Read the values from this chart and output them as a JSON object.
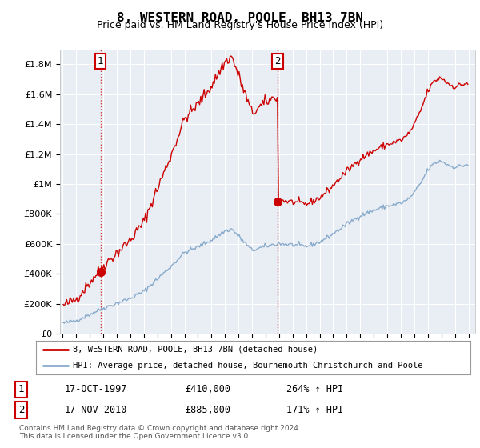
{
  "title": "8, WESTERN ROAD, POOLE, BH13 7BN",
  "subtitle": "Price paid vs. HM Land Registry's House Price Index (HPI)",
  "ylim": [
    0,
    1900000
  ],
  "xlim": [
    1994.8,
    2025.5
  ],
  "yticks": [
    0,
    200000,
    400000,
    600000,
    800000,
    1000000,
    1200000,
    1400000,
    1600000,
    1800000
  ],
  "ytick_labels": [
    "£0",
    "£200K",
    "£400K",
    "£600K",
    "£800K",
    "£1M",
    "£1.2M",
    "£1.4M",
    "£1.6M",
    "£1.8M"
  ],
  "xticks": [
    1995,
    1996,
    1997,
    1998,
    1999,
    2000,
    2001,
    2002,
    2003,
    2004,
    2005,
    2006,
    2007,
    2008,
    2009,
    2010,
    2011,
    2012,
    2013,
    2014,
    2015,
    2016,
    2017,
    2018,
    2019,
    2020,
    2021,
    2022,
    2023,
    2024,
    2025
  ],
  "red_line_color": "#CC0000",
  "blue_line_color": "#88AACC",
  "plot_bg_color": "#E8EEF4",
  "background_color": "#FFFFFF",
  "grid_color": "#FFFFFF",
  "sale1_x": 1997.79,
  "sale1_y": 410000,
  "sale2_x": 2010.88,
  "sale2_y": 885000,
  "legend_line1": "8, WESTERN ROAD, POOLE, BH13 7BN (detached house)",
  "legend_line2": "HPI: Average price, detached house, Bournemouth Christchurch and Poole",
  "footer_line1": "Contains HM Land Registry data © Crown copyright and database right 2024.",
  "footer_line2": "This data is licensed under the Open Government Licence v3.0.",
  "table_row1": [
    "1",
    "17-OCT-1997",
    "£410,000",
    "264% ↑ HPI"
  ],
  "table_row2": [
    "2",
    "17-NOV-2010",
    "£885,000",
    "171% ↑ HPI"
  ]
}
